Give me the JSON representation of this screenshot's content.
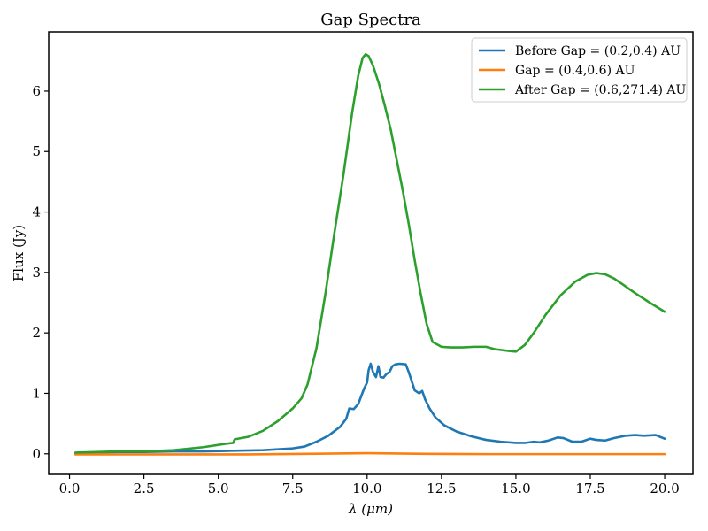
{
  "chart_data": {
    "type": "line",
    "title": "Gap Spectra",
    "xlabel": "λ (μm)",
    "ylabel": "Flux (Jy)",
    "xlim": [
      -0.7,
      20.95
    ],
    "ylim": [
      -0.34,
      6.98
    ],
    "x_ticks": [
      0,
      2.5,
      5,
      7.5,
      10,
      12.5,
      15,
      17.5,
      20
    ],
    "x_tick_labels": [
      "0.0",
      "2.5",
      "5.0",
      "7.5",
      "10.0",
      "12.5",
      "15.0",
      "17.5",
      "20.0"
    ],
    "y_ticks": [
      0,
      1,
      2,
      3,
      4,
      5,
      6
    ],
    "y_tick_labels": [
      "0",
      "1",
      "2",
      "3",
      "4",
      "5",
      "6"
    ],
    "grid": false,
    "legend_position": "top-right",
    "series": [
      {
        "name": "Before Gap = (0.2,0.4) AU",
        "color": "#1f77b4",
        "x": [
          0.2,
          1.0,
          1.6,
          2.5,
          3.5,
          4.5,
          5.5,
          6.5,
          7.5,
          7.9,
          8.3,
          8.7,
          9.1,
          9.3,
          9.4,
          9.55,
          9.7,
          9.8,
          9.9,
          10.0,
          10.05,
          10.12,
          10.2,
          10.3,
          10.38,
          10.45,
          10.55,
          10.65,
          10.75,
          10.85,
          10.95,
          11.1,
          11.3,
          11.4,
          11.5,
          11.6,
          11.75,
          11.85,
          11.95,
          12.1,
          12.3,
          12.6,
          13.0,
          13.5,
          14.0,
          14.5,
          15.0,
          15.3,
          15.6,
          15.8,
          16.1,
          16.4,
          16.6,
          16.9,
          17.2,
          17.5,
          17.7,
          18.0,
          18.3,
          18.7,
          19.0,
          19.3,
          19.7,
          19.85,
          20.0
        ],
        "values": [
          0.01,
          0.02,
          0.03,
          0.03,
          0.04,
          0.04,
          0.05,
          0.06,
          0.09,
          0.12,
          0.2,
          0.3,
          0.45,
          0.58,
          0.75,
          0.74,
          0.82,
          0.95,
          1.08,
          1.18,
          1.38,
          1.49,
          1.35,
          1.27,
          1.45,
          1.27,
          1.26,
          1.32,
          1.35,
          1.45,
          1.48,
          1.49,
          1.48,
          1.35,
          1.2,
          1.05,
          1.0,
          1.04,
          0.9,
          0.75,
          0.6,
          0.47,
          0.37,
          0.29,
          0.23,
          0.2,
          0.18,
          0.18,
          0.2,
          0.19,
          0.22,
          0.27,
          0.26,
          0.2,
          0.2,
          0.25,
          0.23,
          0.22,
          0.26,
          0.3,
          0.31,
          0.3,
          0.31,
          0.28,
          0.25
        ]
      },
      {
        "name": "Gap = (0.4,0.6) AU",
        "color": "#ff7f0e",
        "x": [
          0.2,
          2.0,
          4.0,
          6.0,
          8.0,
          9.0,
          10.0,
          11.0,
          12.0,
          14.0,
          16.0,
          18.0,
          20.0
        ],
        "values": [
          -0.01,
          -0.01,
          -0.01,
          -0.01,
          0.0,
          0.005,
          0.01,
          0.005,
          0.0,
          -0.005,
          -0.005,
          -0.005,
          -0.005
        ]
      },
      {
        "name": "After Gap = (0.6,271.4) AU",
        "color": "#2ca02c",
        "x": [
          0.2,
          1.0,
          1.6,
          2.5,
          3.5,
          4.5,
          5.3,
          5.5,
          5.55,
          6.0,
          6.5,
          7.0,
          7.5,
          7.8,
          8.0,
          8.3,
          8.6,
          8.9,
          9.2,
          9.5,
          9.7,
          9.85,
          9.95,
          10.05,
          10.2,
          10.4,
          10.6,
          10.8,
          11.0,
          11.2,
          11.4,
          11.6,
          11.8,
          12.0,
          12.2,
          12.5,
          12.8,
          13.2,
          13.6,
          14.0,
          14.3,
          14.8,
          15.0,
          15.3,
          15.6,
          16.0,
          16.5,
          17.0,
          17.4,
          17.7,
          18.0,
          18.3,
          18.6,
          19.0,
          19.5,
          20.0
        ],
        "values": [
          0.02,
          0.03,
          0.04,
          0.04,
          0.06,
          0.11,
          0.17,
          0.18,
          0.24,
          0.28,
          0.38,
          0.54,
          0.75,
          0.92,
          1.15,
          1.75,
          2.65,
          3.65,
          4.6,
          5.65,
          6.25,
          6.55,
          6.61,
          6.58,
          6.42,
          6.12,
          5.75,
          5.35,
          4.85,
          4.35,
          3.8,
          3.2,
          2.65,
          2.15,
          1.85,
          1.77,
          1.76,
          1.76,
          1.77,
          1.77,
          1.73,
          1.7,
          1.69,
          1.8,
          2.0,
          2.3,
          2.62,
          2.85,
          2.96,
          2.99,
          2.97,
          2.9,
          2.8,
          2.66,
          2.5,
          2.35
        ]
      }
    ]
  }
}
